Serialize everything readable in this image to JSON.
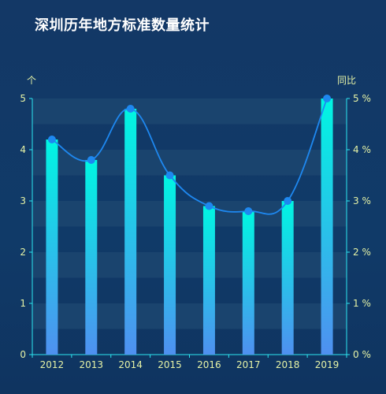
{
  "title": "深圳历年地方标准数量统计",
  "colors": {
    "bar_top": "#00f6e2",
    "bar_bottom": "#4f90f0",
    "line": "#1e88f0",
    "band": "#1c4770",
    "axis": "#2ce6f0",
    "text": "#e6f3a6"
  },
  "chart_data": {
    "type": "bar",
    "title": "深圳历年地方标准数量统计",
    "categories": [
      "2012",
      "2013",
      "2014",
      "2015",
      "2016",
      "2017",
      "2018",
      "2019"
    ],
    "series": [
      {
        "values": [
          4.2,
          3.8,
          4.8,
          3.5,
          2.9,
          2.8,
          3.0,
          5.0
        ]
      },
      {
        "values": [
          4.2,
          3.8,
          4.8,
          3.5,
          2.9,
          2.8,
          3.0,
          5.0
        ]
      }
    ],
    "y_left": {
      "unit": "个",
      "min": 0,
      "max": 5,
      "ticks": [
        "0",
        "1",
        "2",
        "3",
        "4",
        "5"
      ]
    },
    "y_right": {
      "unit": "同比",
      "min": 0,
      "max": 5,
      "ticks": [
        "0 %",
        "1 %",
        "2 %",
        "3 %",
        "4 %",
        "5 %"
      ]
    },
    "grid": "alternating bands",
    "legend": "none"
  }
}
